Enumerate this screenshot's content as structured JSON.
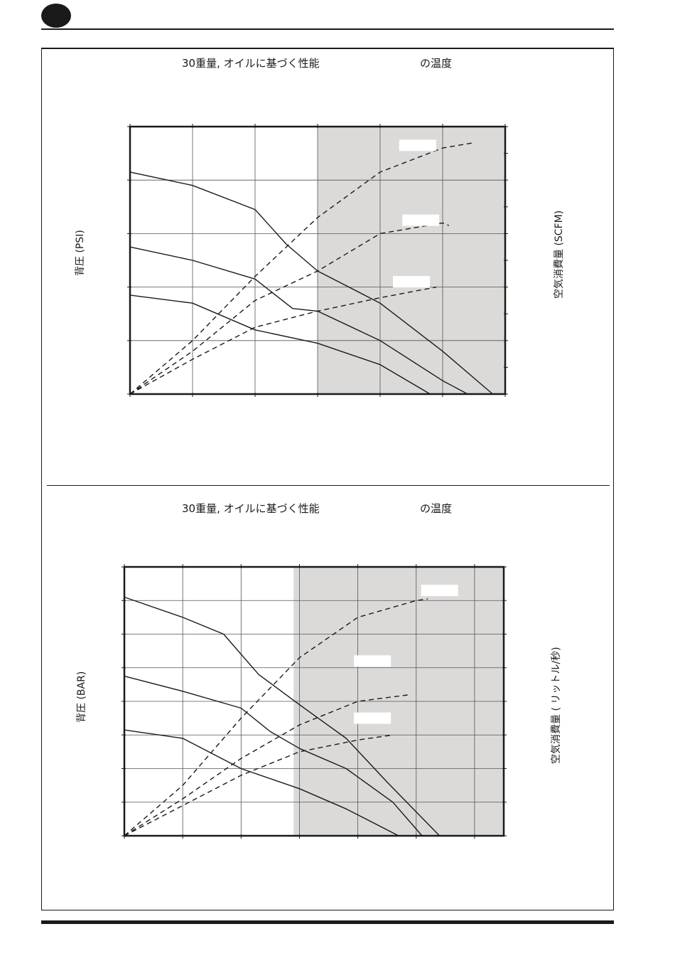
{
  "page": {
    "marker_color": "#1a1a1a",
    "shading_color": "#dcdad8"
  },
  "chart_data": [
    {
      "type": "line",
      "title": "30重量, オイルに基づく性能",
      "title_suffix": "の温度",
      "ylabel_left": "背圧 (PSI)",
      "ylabel_right": "空気消費量 (SCFM)",
      "xlim": [
        0,
        6
      ],
      "ylim": [
        0,
        5
      ],
      "right_ylim": [
        0,
        10
      ],
      "grid": true,
      "shaded_from_x": 3,
      "series": [
        {
          "style": "solid",
          "points": [
            [
              0,
              4.15
            ],
            [
              1,
              3.9
            ],
            [
              2,
              3.45
            ],
            [
              2.5,
              2.8
            ],
            [
              3,
              2.3
            ],
            [
              4,
              1.7
            ],
            [
              5,
              0.8
            ],
            [
              5.8,
              0
            ]
          ]
        },
        {
          "style": "solid",
          "points": [
            [
              0,
              2.75
            ],
            [
              1,
              2.5
            ],
            [
              2,
              2.15
            ],
            [
              2.6,
              1.6
            ],
            [
              3,
              1.55
            ],
            [
              4,
              1.0
            ],
            [
              5,
              0.25
            ],
            [
              5.4,
              0
            ]
          ]
        },
        {
          "style": "solid",
          "points": [
            [
              0,
              1.85
            ],
            [
              1,
              1.7
            ],
            [
              2,
              1.2
            ],
            [
              3,
              0.95
            ],
            [
              4,
              0.55
            ],
            [
              4.8,
              0
            ]
          ]
        },
        {
          "style": "dashed",
          "points": [
            [
              0,
              0
            ],
            [
              1,
              1.0
            ],
            [
              2,
              2.2
            ],
            [
              3,
              3.3
            ],
            [
              4,
              4.15
            ],
            [
              5,
              4.6
            ],
            [
              5.5,
              4.7
            ]
          ]
        },
        {
          "style": "dashed",
          "points": [
            [
              0,
              0
            ],
            [
              1,
              0.8
            ],
            [
              2,
              1.75
            ],
            [
              3,
              2.3
            ],
            [
              4,
              3.0
            ],
            [
              5,
              3.2
            ],
            [
              5.1,
              3.15
            ]
          ]
        },
        {
          "style": "dashed",
          "points": [
            [
              0,
              0
            ],
            [
              1,
              0.65
            ],
            [
              2,
              1.25
            ],
            [
              3,
              1.55
            ],
            [
              4,
              1.8
            ],
            [
              4.9,
              2.0
            ]
          ]
        }
      ],
      "curve_labels": [
        {
          "text": "",
          "x": 4.6,
          "y": 4.65
        },
        {
          "text": "",
          "x": 4.65,
          "y": 3.25
        },
        {
          "text": "",
          "x": 4.5,
          "y": 2.1
        }
      ]
    },
    {
      "type": "line",
      "title": "30重量, オイルに基づく性能",
      "title_suffix": "の温度",
      "ylabel_left": "背圧 (BAR)",
      "ylabel_right": "空気消費量 ( リットル/秒)",
      "xlim": [
        0,
        6.5
      ],
      "ylim": [
        0,
        8
      ],
      "right_ylim": [
        0,
        8
      ],
      "grid": true,
      "shaded_from_x": 2.9,
      "series": [
        {
          "style": "solid",
          "points": [
            [
              0,
              7.1
            ],
            [
              1,
              6.5
            ],
            [
              1.7,
              6.0
            ],
            [
              2.3,
              4.8
            ],
            [
              3,
              3.9
            ],
            [
              3.8,
              2.9
            ],
            [
              4.5,
              1.6
            ],
            [
              5.4,
              0
            ]
          ]
        },
        {
          "style": "solid",
          "points": [
            [
              0,
              4.75
            ],
            [
              1,
              4.3
            ],
            [
              2,
              3.8
            ],
            [
              2.5,
              3.1
            ],
            [
              3,
              2.6
            ],
            [
              3.8,
              2.0
            ],
            [
              4.6,
              1.0
            ],
            [
              5.1,
              0
            ]
          ]
        },
        {
          "style": "solid",
          "points": [
            [
              0,
              3.15
            ],
            [
              1,
              2.9
            ],
            [
              2,
              2.0
            ],
            [
              3,
              1.4
            ],
            [
              3.8,
              0.8
            ],
            [
              4.7,
              0
            ]
          ]
        },
        {
          "style": "dashed",
          "points": [
            [
              0,
              0
            ],
            [
              1,
              1.5
            ],
            [
              2,
              3.5
            ],
            [
              3,
              5.3
            ],
            [
              4,
              6.5
            ],
            [
              5,
              7.0
            ],
            [
              5.2,
              7.05
            ]
          ]
        },
        {
          "style": "dashed",
          "points": [
            [
              0,
              0
            ],
            [
              1,
              1.1
            ],
            [
              2,
              2.3
            ],
            [
              3,
              3.3
            ],
            [
              4,
              4.0
            ],
            [
              4.9,
              4.2
            ]
          ]
        },
        {
          "style": "dashed",
          "points": [
            [
              0,
              0
            ],
            [
              1,
              0.9
            ],
            [
              2,
              1.8
            ],
            [
              3,
              2.5
            ],
            [
              4,
              2.85
            ],
            [
              4.6,
              3.0
            ]
          ]
        }
      ],
      "curve_labels": [
        {
          "text": "",
          "x": 5.4,
          "y": 7.3
        },
        {
          "text": "",
          "x": 4.25,
          "y": 5.2
        },
        {
          "text": "",
          "x": 4.25,
          "y": 3.5
        }
      ]
    }
  ]
}
